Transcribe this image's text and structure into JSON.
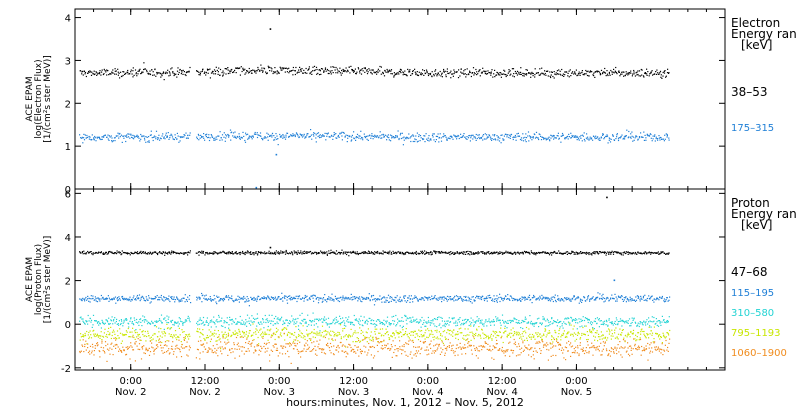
{
  "chart_data": [
    {
      "type": "scatter",
      "panel": "electron",
      "ylabel_lines": [
        "ACE EPAM",
        "log(Electron Flux)",
        "[1/(cm²s ster MeV)]"
      ],
      "ylim": [
        0,
        4.2
      ],
      "yticks": [
        0,
        1,
        2,
        3,
        4
      ],
      "legend_title": [
        "Electron",
        "Energy ran",
        "[keV]"
      ],
      "legend_title_color": "#000000",
      "series": [
        {
          "name": "38–53",
          "color": "#000000",
          "level": 2.72,
          "spread": 0.05,
          "drift": 0.06
        },
        {
          "name": "175–315",
          "color": "#1f7fd6",
          "level": 1.22,
          "spread": 0.05,
          "drift": 0.03
        }
      ],
      "outliers": [
        {
          "x": 0.935,
          "y": 3.75,
          "series": 0
        },
        {
          "x": 0.84,
          "y": 0.05,
          "series": 1
        },
        {
          "x": 0.975,
          "y": 0.82,
          "series": 1
        }
      ]
    },
    {
      "type": "scatter",
      "panel": "proton",
      "ylabel_lines": [
        "ACE EPAM",
        "log(Proton Flux)",
        "[1/(cm²s ster MeV)]"
      ],
      "ylim": [
        -2.1,
        6.2
      ],
      "yticks": [
        -2,
        0,
        2,
        4,
        6
      ],
      "legend_title": [
        "Proton",
        "Energy ran",
        "[keV]"
      ],
      "legend_title_color": "#000000",
      "series": [
        {
          "name": "47–68",
          "color": "#000000",
          "level": 3.3,
          "spread": 0.04,
          "drift": 0.0
        },
        {
          "name": "115–195",
          "color": "#1f7fd6",
          "level": 1.2,
          "spread": 0.08,
          "drift": 0.0
        },
        {
          "name": "310–580",
          "color": "#22d3d3",
          "level": 0.15,
          "spread": 0.13,
          "drift": 0.0
        },
        {
          "name": "795–1193",
          "color": "#c8e600",
          "level": -0.45,
          "spread": 0.16,
          "drift": 0.0
        },
        {
          "name": "1060–1900",
          "color": "#f08c1e",
          "level": -1.05,
          "spread": 0.22,
          "drift": 0.0
        }
      ],
      "outliers": [
        {
          "x": 3.2,
          "y": 5.85,
          "series": 0
        },
        {
          "x": 3.25,
          "y": 2.05,
          "series": 1
        },
        {
          "x": 0.935,
          "y": 3.55,
          "series": 0
        }
      ]
    }
  ],
  "x_axis": {
    "xlim": [
      -0.375,
      4.0
    ],
    "data_end": 3.625,
    "gap": [
      0.4,
      0.44
    ],
    "ticks": [
      {
        "x": 0.0,
        "time": "0:00",
        "date": "Nov. 2"
      },
      {
        "x": 0.5,
        "time": "12:00",
        "date": "Nov. 2"
      },
      {
        "x": 1.0,
        "time": "0:00",
        "date": "Nov. 3"
      },
      {
        "x": 1.5,
        "time": "12:00",
        "date": "Nov. 3"
      },
      {
        "x": 2.0,
        "time": "0:00",
        "date": "Nov. 4"
      },
      {
        "x": 2.5,
        "time": "12:00",
        "date": "Nov. 4"
      },
      {
        "x": 3.0,
        "time": "0:00",
        "date": "Nov. 5"
      }
    ],
    "minor_step": 0.125,
    "label": "hours:minutes,  Nov.  1, 2012 – Nov.  5, 2012"
  }
}
